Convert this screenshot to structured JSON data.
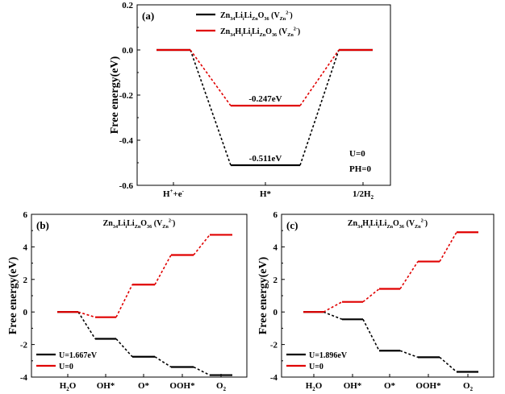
{
  "chart_data": [
    {
      "type": "line",
      "panel_label": "(a)",
      "ylabel": "Free energy(eV)",
      "ylim": [
        -0.6,
        0.2
      ],
      "yticks": [
        "0.2",
        "0.0",
        "-0.2",
        "-0.4",
        "-0.6"
      ],
      "ytick_values": [
        0.2,
        0.0,
        -0.2,
        -0.4,
        -0.6
      ],
      "categories": [
        {
          "main": "H",
          "sup": "+",
          "rest": "+e",
          "sup2": "-"
        },
        {
          "main": "H*",
          "sup": "",
          "rest": "",
          "sup2": ""
        },
        {
          "main": "1/2H",
          "sub": "2"
        }
      ],
      "series": [
        {
          "name": {
            "t1": "Zn",
            "s1": "34",
            "t2": "Li",
            "s2": "i",
            "t3": "Li",
            "s3": "Zn",
            "t4": "O",
            "s4": "36",
            "t5": " (V",
            "s5": "Zn",
            "p5": "2-",
            "t6": ")"
          },
          "color": "#000000",
          "values": [
            0.0,
            -0.511,
            0.0
          ]
        },
        {
          "name": {
            "t1": "Zn",
            "s1": "34",
            "t2": "H",
            "s2": "i",
            "t3": "Li",
            "s3": "i",
            "t4": "Li",
            "s4": "Zn",
            "t5": "O",
            "s5": "36",
            "t6": " (V",
            "s6": "Zn",
            "p6": "2-",
            "t7": ")"
          },
          "color": "#e00000",
          "values": [
            0.0,
            -0.247,
            0.0
          ]
        }
      ],
      "annotations": {
        "black": "-0.511eV",
        "red": "-0.247eV",
        "cond1": "U=0",
        "cond2": "PH=0"
      }
    },
    {
      "type": "line",
      "panel_label": "(b)",
      "ylabel": "Free energy(eV)",
      "title": {
        "t1": "Zn",
        "s1": "34",
        "t2": "Li",
        "s2": "i",
        "t3": "Li",
        "s3": "Zn",
        "t4": "O",
        "s4": "36",
        "t5": " (V",
        "s5": "Zn",
        "p5": "2-",
        "t6": ")"
      },
      "ylim": [
        -4,
        6
      ],
      "yticks": [
        "6",
        "4",
        "2",
        "0",
        "-2",
        "-4"
      ],
      "ytick_values": [
        6,
        4,
        2,
        0,
        -2,
        -4
      ],
      "categories": [
        "H2O",
        "OH*",
        "O*",
        "OOH*",
        "O2"
      ],
      "series": [
        {
          "name": "U=1.667eV",
          "color": "#000000",
          "values": [
            0.0,
            -1.65,
            -2.75,
            -3.38,
            -3.88
          ]
        },
        {
          "name": "U=0",
          "color": "#e00000",
          "values": [
            0.0,
            -0.32,
            1.68,
            3.5,
            4.74
          ]
        }
      ]
    },
    {
      "type": "line",
      "panel_label": "(c)",
      "ylabel": "Free energy(eV)",
      "title": {
        "t1": "Zn",
        "s1": "34",
        "t2": "H",
        "s2": "i",
        "t3": "Li",
        "s3": "i",
        "t4": "Li",
        "s4": "Zn",
        "t5": "O",
        "s5": "36",
        "t6": " (V",
        "s6": "Zn",
        "p6": "2-",
        "t7": ")"
      },
      "ylim": [
        -4,
        6
      ],
      "yticks": [
        "6",
        "4",
        "2",
        "0",
        "-2",
        "-4"
      ],
      "ytick_values": [
        6,
        4,
        2,
        0,
        -2,
        -4
      ],
      "categories": [
        "H2O",
        "OH*",
        "O*",
        "OOH*",
        "O2"
      ],
      "series": [
        {
          "name": "U=1.896eV",
          "color": "#000000",
          "values": [
            0.0,
            -0.45,
            -2.38,
            -2.78,
            -3.68
          ]
        },
        {
          "name": "U=0",
          "color": "#e00000",
          "values": [
            0.0,
            0.62,
            1.42,
            3.1,
            4.9
          ]
        }
      ]
    }
  ]
}
